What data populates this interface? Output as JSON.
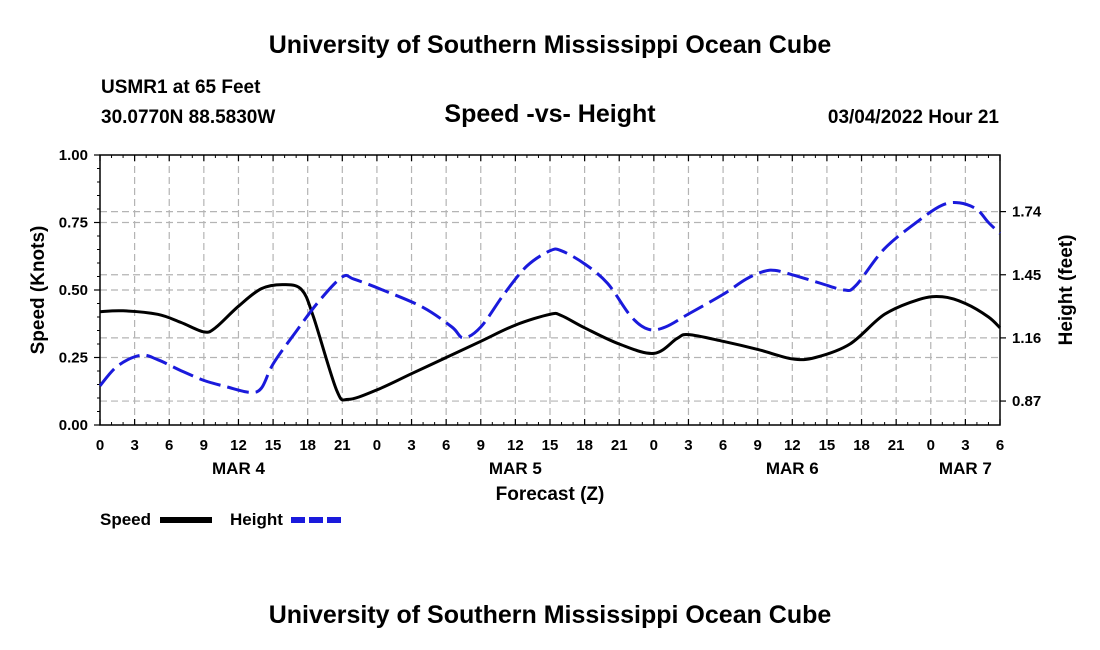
{
  "page": {
    "title": "University of Southern Mississippi Ocean Cube",
    "footer_title": "University of Southern Mississippi Ocean Cube",
    "station": "USMR1 at 65 Feet",
    "coordinates": "30.0770N  88.5830W",
    "timestamp": "03/04/2022 Hour 21"
  },
  "chart_data": {
    "type": "line",
    "title": "Speed -vs- Height",
    "xlabel": "Forecast (Z)",
    "ylabel": "Speed (Knots)",
    "y2label": "Height (feet)",
    "ylim": [
      0,
      1
    ],
    "y2lim": [
      0.76,
      2.0
    ],
    "grid": true,
    "x_range_hours": [
      0,
      78
    ],
    "x_ticks": [
      {
        "hour": 0,
        "label": "0"
      },
      {
        "hour": 3,
        "label": "3"
      },
      {
        "hour": 6,
        "label": "6"
      },
      {
        "hour": 9,
        "label": "9"
      },
      {
        "hour": 12,
        "label": "12"
      },
      {
        "hour": 15,
        "label": "15"
      },
      {
        "hour": 18,
        "label": "18"
      },
      {
        "hour": 21,
        "label": "21"
      },
      {
        "hour": 24,
        "label": "0"
      },
      {
        "hour": 27,
        "label": "3"
      },
      {
        "hour": 30,
        "label": "6"
      },
      {
        "hour": 33,
        "label": "9"
      },
      {
        "hour": 36,
        "label": "12"
      },
      {
        "hour": 39,
        "label": "15"
      },
      {
        "hour": 42,
        "label": "18"
      },
      {
        "hour": 45,
        "label": "21"
      },
      {
        "hour": 48,
        "label": "0"
      },
      {
        "hour": 51,
        "label": "3"
      },
      {
        "hour": 54,
        "label": "6"
      },
      {
        "hour": 57,
        "label": "9"
      },
      {
        "hour": 60,
        "label": "12"
      },
      {
        "hour": 63,
        "label": "15"
      },
      {
        "hour": 66,
        "label": "18"
      },
      {
        "hour": 69,
        "label": "21"
      },
      {
        "hour": 72,
        "label": "0"
      },
      {
        "hour": 75,
        "label": "3"
      },
      {
        "hour": 78,
        "label": "6"
      }
    ],
    "date_labels": [
      {
        "hour": 12,
        "label": "MAR 4"
      },
      {
        "hour": 36,
        "label": "MAR 5"
      },
      {
        "hour": 60,
        "label": "MAR 6"
      },
      {
        "hour": 75,
        "label": "MAR 7"
      }
    ],
    "y_ticks": [
      {
        "value": 0.0,
        "label": "0.00"
      },
      {
        "value": 0.25,
        "label": "0.25"
      },
      {
        "value": 0.5,
        "label": "0.50"
      },
      {
        "value": 0.75,
        "label": "0.75"
      },
      {
        "value": 1.0,
        "label": "1.00"
      }
    ],
    "y2_ticks": [
      {
        "value": 0.87,
        "label": "0.87"
      },
      {
        "value": 1.16,
        "label": "1.16"
      },
      {
        "value": 1.45,
        "label": "1.45"
      },
      {
        "value": 1.74,
        "label": "1.74"
      }
    ],
    "series": [
      {
        "name": "Speed",
        "axis": "left",
        "color": "#000000",
        "dash": "solid",
        "points": [
          [
            0,
            0.42
          ],
          [
            2,
            0.423
          ],
          [
            5,
            0.41
          ],
          [
            7,
            0.38
          ],
          [
            9,
            0.345
          ],
          [
            10,
            0.36
          ],
          [
            12,
            0.44
          ],
          [
            14,
            0.505
          ],
          [
            16,
            0.52
          ],
          [
            17.5,
            0.5
          ],
          [
            18.5,
            0.4
          ],
          [
            20.5,
            0.13
          ],
          [
            21.5,
            0.095
          ],
          [
            24,
            0.13
          ],
          [
            27,
            0.19
          ],
          [
            30,
            0.25
          ],
          [
            33,
            0.31
          ],
          [
            36,
            0.37
          ],
          [
            39,
            0.41
          ],
          [
            40,
            0.405
          ],
          [
            42,
            0.36
          ],
          [
            45,
            0.3
          ],
          [
            48,
            0.265
          ],
          [
            50,
            0.32
          ],
          [
            51,
            0.335
          ],
          [
            54,
            0.31
          ],
          [
            57,
            0.28
          ],
          [
            60,
            0.245
          ],
          [
            62,
            0.25
          ],
          [
            65,
            0.3
          ],
          [
            68,
            0.41
          ],
          [
            71,
            0.465
          ],
          [
            73,
            0.475
          ],
          [
            75,
            0.45
          ],
          [
            77,
            0.4
          ],
          [
            78,
            0.36
          ]
        ]
      },
      {
        "name": "Height",
        "axis": "right",
        "color": "#1a1adc",
        "dash": "dashed",
        "points": [
          [
            0,
            0.94
          ],
          [
            1.5,
            1.03
          ],
          [
            3.5,
            1.08
          ],
          [
            5,
            1.06
          ],
          [
            7,
            1.01
          ],
          [
            9,
            0.965
          ],
          [
            11,
            0.935
          ],
          [
            13,
            0.91
          ],
          [
            14,
            0.93
          ],
          [
            15,
            1.04
          ],
          [
            17,
            1.19
          ],
          [
            19,
            1.33
          ],
          [
            21,
            1.44
          ],
          [
            22,
            1.43
          ],
          [
            24.5,
            1.38
          ],
          [
            28,
            1.3
          ],
          [
            30.5,
            1.21
          ],
          [
            31.5,
            1.16
          ],
          [
            33,
            1.21
          ],
          [
            35,
            1.36
          ],
          [
            37,
            1.49
          ],
          [
            39,
            1.56
          ],
          [
            40,
            1.56
          ],
          [
            42,
            1.5
          ],
          [
            44,
            1.41
          ],
          [
            46,
            1.26
          ],
          [
            47.5,
            1.2
          ],
          [
            49,
            1.21
          ],
          [
            51,
            1.27
          ],
          [
            54,
            1.36
          ],
          [
            56,
            1.43
          ],
          [
            57.5,
            1.465
          ],
          [
            58.5,
            1.47
          ],
          [
            60,
            1.45
          ],
          [
            62.5,
            1.41
          ],
          [
            64.5,
            1.38
          ],
          [
            65.5,
            1.4
          ],
          [
            68,
            1.57
          ],
          [
            71,
            1.7
          ],
          [
            73,
            1.77
          ],
          [
            74.5,
            1.78
          ],
          [
            76,
            1.75
          ],
          [
            77,
            1.69
          ],
          [
            78,
            1.64
          ]
        ]
      }
    ]
  },
  "legend": {
    "speed_label": "Speed",
    "height_label": "Height"
  }
}
